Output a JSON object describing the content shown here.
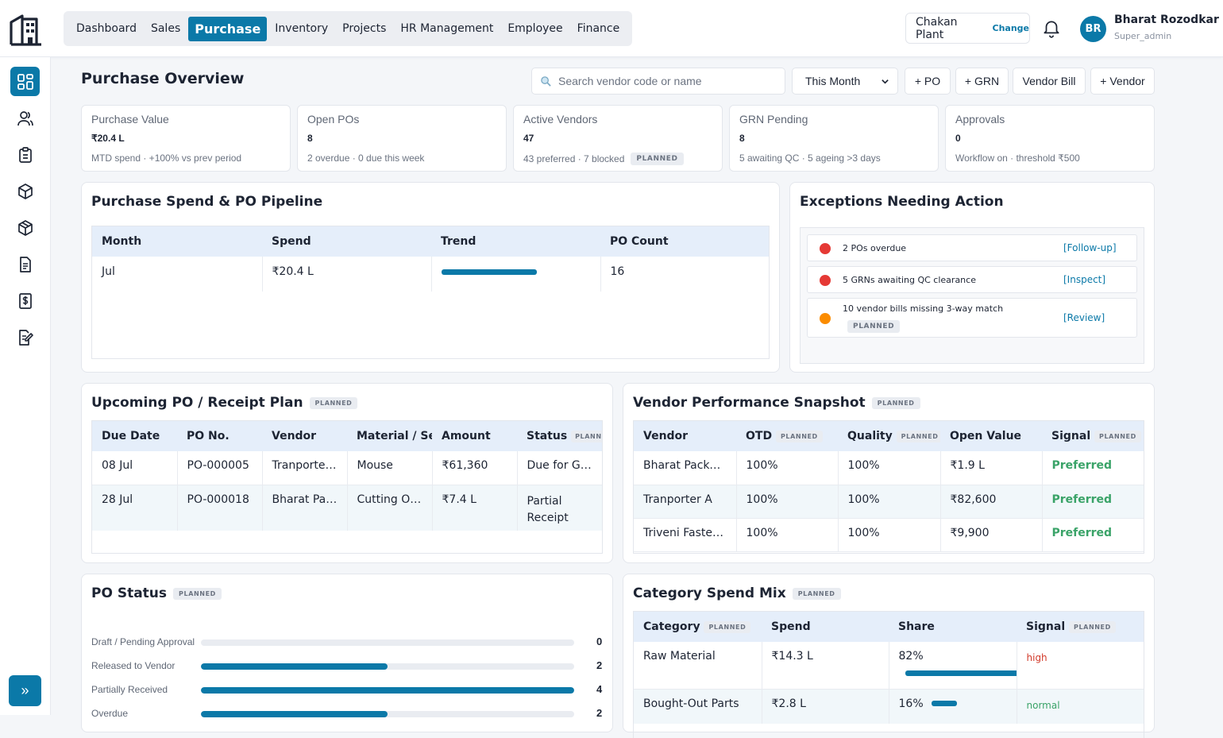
{
  "nav": {
    "items": [
      {
        "label": "Dashboard"
      },
      {
        "label": "Sales"
      },
      {
        "label": "Purchase"
      },
      {
        "label": "Inventory"
      },
      {
        "label": "Projects"
      },
      {
        "label": "HR Management"
      },
      {
        "label": "Employee"
      },
      {
        "label": "Finance"
      }
    ],
    "active": "Purchase"
  },
  "plant": {
    "name": "Chakan Plant",
    "change_label": "Change"
  },
  "user": {
    "initials": "BR",
    "name": "Bharat Rozodkar",
    "role": "Super_admin"
  },
  "sidebar": {
    "icons": [
      "dashboard-icon",
      "users-icon",
      "clipboard-icon",
      "box-icon",
      "package-icon",
      "document-icon",
      "invoice-icon",
      "edit-document-icon"
    ],
    "expand_label": "»"
  },
  "page": {
    "title": "Purchase Overview",
    "search_placeholder": "Search vendor code or name",
    "period": "This Month",
    "buttons": [
      "+ PO",
      "+ GRN",
      "Vendor Bill",
      "+ Vendor"
    ]
  },
  "kpis": [
    {
      "title": "Purchase Value",
      "value": "₹20.4 L",
      "sub": "MTD spend · +100% vs prev period",
      "badge": ""
    },
    {
      "title": "Open POs",
      "value": "8",
      "sub": "2 overdue · 0 due this week",
      "badge": ""
    },
    {
      "title": "Active Vendors",
      "value": "47",
      "sub": "43 preferred · 7 blocked",
      "badge": "PLANNED"
    },
    {
      "title": "GRN Pending",
      "value": "8",
      "sub": "5 awaiting QC · 5 ageing >3 days",
      "badge": ""
    },
    {
      "title": "Approvals",
      "value": "0",
      "sub": "Workflow on · threshold ₹500",
      "badge": ""
    }
  ],
  "spend": {
    "title": "Purchase Spend & PO Pipeline",
    "headers": [
      "Month",
      "Spend",
      "Trend",
      "PO Count"
    ],
    "rows": [
      {
        "month": "Jul",
        "spend": "₹20.4 L",
        "trend": 1.0,
        "count": "16"
      }
    ]
  },
  "exceptions": {
    "title": "Exceptions Needing Action",
    "items": [
      {
        "text": "2 POs overdue",
        "action": "[Follow-up]",
        "color": "#e53935",
        "badge": ""
      },
      {
        "text": "5 GRNs awaiting QC clearance",
        "action": "[Inspect]",
        "color": "#e53935",
        "badge": ""
      },
      {
        "text": "10 vendor bills missing 3-way match",
        "action": "[Review]",
        "color": "#fb8c00",
        "badge": "PLANNED"
      }
    ]
  },
  "upcoming": {
    "title": "Upcoming PO / Receipt Plan",
    "badge": "PLANNED",
    "headers": [
      "Due Date",
      "PO No.",
      "Vendor",
      "Material / Serv",
      "Amount",
      "Status"
    ],
    "status_badge": "PLANNE",
    "rows": [
      [
        "08 Jul",
        "PO-000005",
        "Tranporter A",
        "Mouse",
        "₹61,360",
        "Due for GRN"
      ],
      [
        "28 Jul",
        "PO-000018",
        "Bharat Pac…",
        "Cutting Oil…",
        "₹7.4 L",
        "Partial Receipt"
      ]
    ]
  },
  "vendor_perf": {
    "title": "Vendor Performance Snapshot",
    "badge": "PLANNED",
    "headers": [
      {
        "label": "Vendor",
        "badge": ""
      },
      {
        "label": "OTD",
        "badge": "PLANNED"
      },
      {
        "label": "Quality",
        "badge": "PLANNED"
      },
      {
        "label": "Open Value",
        "badge": ""
      },
      {
        "label": "Signal",
        "badge": "PLANNED"
      }
    ],
    "rows": [
      [
        "Bharat Packag…",
        "100%",
        "100%",
        "₹1.9 L",
        "Preferred"
      ],
      [
        "Tranporter A",
        "100%",
        "100%",
        "₹82,600",
        "Preferred"
      ],
      [
        "Triveni Fasten…",
        "100%",
        "100%",
        "₹9,900",
        "Preferred"
      ]
    ]
  },
  "po_status": {
    "title": "PO Status",
    "badge": "PLANNED",
    "max": 4,
    "rows": [
      {
        "label": "Draft / Pending Approval",
        "value": 0
      },
      {
        "label": "Released to Vendor",
        "value": 2
      },
      {
        "label": "Partially Received",
        "value": 4
      },
      {
        "label": "Overdue",
        "value": 2
      }
    ]
  },
  "category": {
    "title": "Category Spend Mix",
    "badge": "PLANNED",
    "headers": [
      {
        "label": "Category",
        "badge": "PLANNED"
      },
      {
        "label": "Spend",
        "badge": ""
      },
      {
        "label": "Share",
        "badge": ""
      },
      {
        "label": "Signal",
        "badge": "PLANNED"
      }
    ],
    "rows": [
      {
        "category": "Raw Material",
        "spend": "₹14.3 L",
        "share": "82%",
        "share_value": 0.82,
        "signal": "high"
      },
      {
        "category": "Bought-Out Parts",
        "spend": "₹2.8 L",
        "share": "16%",
        "share_value": 0.16,
        "signal": "normal"
      }
    ]
  },
  "colors": {
    "accent": "#0b79a8",
    "red": "#e53935",
    "orange": "#fb8c00",
    "green": "#3aa368"
  }
}
